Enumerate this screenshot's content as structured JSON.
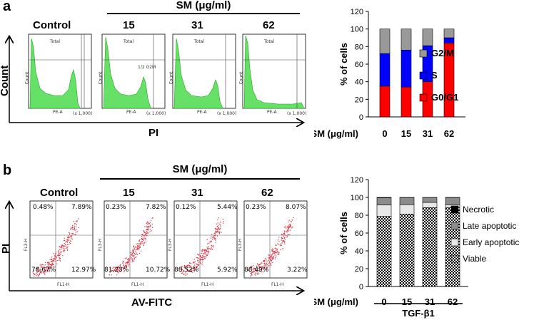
{
  "panel_a": {
    "label": "a",
    "sm_header": "SM (μg/ml)",
    "histograms": [
      {
        "title": "Control",
        "gate_total": "Total",
        "gate_g2m": "",
        "xlabel": "PE-A",
        "ylabel": "Count",
        "scale": "(x 1,000)"
      },
      {
        "title": "15",
        "gate_total": "Total",
        "gate_g2m": "1/2 G2M",
        "xlabel": "PE-A",
        "ylabel": "Count",
        "scale": "(x 1,000)"
      },
      {
        "title": "31",
        "gate_total": "Total",
        "gate_g2m": "",
        "xlabel": "PE-A",
        "ylabel": "Count",
        "scale": "(x 1,000)"
      },
      {
        "title": "62",
        "gate_total": "Total",
        "gate_g2m": "",
        "xlabel": "PE-A",
        "ylabel": "Count",
        "scale": "(x 1,000)"
      }
    ],
    "y_axis_label": "Count",
    "x_axis_label": "PI"
  },
  "panel_b": {
    "label": "b",
    "sm_header": "SM (μg/ml)",
    "scatter_plots": [
      {
        "title": "Control",
        "ul": "0.48%",
        "ur": "7.89%",
        "ll": "78.67%",
        "lr": "12.97%",
        "xlabel": "FL1-H",
        "ylabel": "FL3-H"
      },
      {
        "title": "15",
        "ul": "0.23%",
        "ur": "7.82%",
        "ll": "81.23%",
        "lr": "10.72%",
        "xlabel": "FL1-H",
        "ylabel": "FL3-H"
      },
      {
        "title": "31",
        "ul": "0.12%",
        "ur": "5.44%",
        "ll": "88.52%",
        "lr": "5.92%",
        "xlabel": "FL1-H",
        "ylabel": "FL3-H"
      },
      {
        "title": "62",
        "ul": "0.23%",
        "ur": "8.07%",
        "ll": "88.49%",
        "lr": "3.22%",
        "xlabel": "FL1-H",
        "ylabel": "FL3-H"
      }
    ],
    "y_axis_label": "PI",
    "x_axis_label": "AV-FITC"
  },
  "colors": {
    "histogram_fill": "#66e066",
    "histogram_line": "#22aa22",
    "dots": "#d93b4a",
    "g0g1": "#ff0000",
    "s": "#0000ff",
    "g2m": "#999999"
  },
  "chart_data": [
    {
      "type": "bar",
      "stacked": true,
      "ylabel": "% of cells",
      "xlabel": "SM (μg/ml)",
      "categories": [
        "0",
        "15",
        "31",
        "62"
      ],
      "ylim": [
        0,
        120
      ],
      "yticks": [
        "0",
        "20",
        "40",
        "60",
        "80",
        "100",
        "120"
      ],
      "series": [
        {
          "name": "G0/G1",
          "values": [
            35,
            34,
            40,
            84
          ],
          "color": "#ff0000"
        },
        {
          "name": "S",
          "values": [
            37,
            42,
            41,
            6
          ],
          "color": "#0000ff"
        },
        {
          "name": "G2/M",
          "values": [
            28,
            24,
            19,
            10
          ],
          "color": "#999999"
        }
      ],
      "legend": "right"
    },
    {
      "type": "bar",
      "stacked": true,
      "ylabel": "% of cells",
      "xlabel": "SM (μg/ml)",
      "group_label": "TGF-β1",
      "categories": [
        "0",
        "15",
        "31",
        "62"
      ],
      "ylim": [
        0,
        120
      ],
      "yticks": [
        "0",
        "20",
        "40",
        "60",
        "80",
        "100",
        "120"
      ],
      "series": [
        {
          "name": "Viable",
          "values": [
            78.67,
            81.23,
            88.52,
            88.49
          ],
          "pattern": "checker"
        },
        {
          "name": "Early apoptotic",
          "values": [
            12.97,
            10.72,
            5.92,
            3.22
          ],
          "color": "#e8e8e8"
        },
        {
          "name": "Late apoptotic",
          "values": [
            7.89,
            7.82,
            5.44,
            8.07
          ],
          "color": "#8c8c8c"
        },
        {
          "name": "Necrotic",
          "values": [
            0.48,
            0.23,
            0.12,
            0.23
          ],
          "color": "#000000"
        }
      ],
      "legend": "right"
    }
  ]
}
